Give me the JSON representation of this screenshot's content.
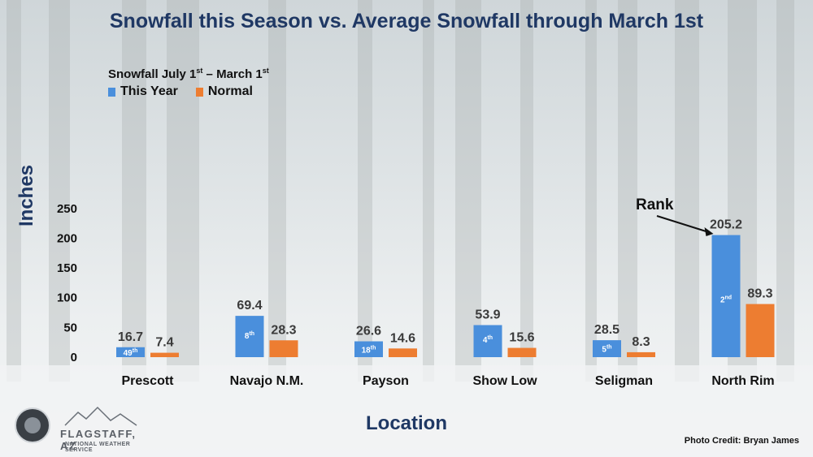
{
  "colors": {
    "this_year": "#4a8fdc",
    "normal": "#ed7d31",
    "title": "#1f3864"
  },
  "logo": {
    "name": "FLAGSTAFF, AZ",
    "sub": "NATIONAL WEATHER SERVICE",
    "icon": "nws-seal-icon"
  },
  "credit": "Photo Credit: Bryan James",
  "annotation": {
    "text": "Rank"
  },
  "chart_data": {
    "type": "bar",
    "title": "Snowfall this Season vs. Average Snowfall through March 1st",
    "xlabel": "Location",
    "ylabel": "Inches",
    "ylim": [
      0,
      250
    ],
    "yticks": [
      0,
      50,
      100,
      150,
      200,
      250
    ],
    "grid": false,
    "legend": {
      "title_parts": [
        "Snowfall July 1",
        "st",
        " – March 1",
        "st"
      ],
      "placement": "top-left"
    },
    "categories": [
      "Prescott",
      "Navajo N.M.",
      "Payson",
      "Show Low",
      "Seligman",
      "North Rim"
    ],
    "series": [
      {
        "name": "This Year",
        "values": [
          16.7,
          69.4,
          26.6,
          53.9,
          28.5,
          205.2
        ],
        "labels": [
          "16.7",
          "69.4",
          "26.6",
          "53.9",
          "28.5",
          "205.2"
        ]
      },
      {
        "name": "Normal",
        "values": [
          7.4,
          28.3,
          14.6,
          15.6,
          8.3,
          89.3
        ],
        "labels": [
          "7.4",
          "28.3",
          "14.6",
          "15.6",
          "8.3",
          "89.3"
        ]
      }
    ],
    "ranks": [
      {
        "num": "49",
        "sfx": "th"
      },
      {
        "num": "8",
        "sfx": "th"
      },
      {
        "num": "18",
        "sfx": "th"
      },
      {
        "num": "4",
        "sfx": "th"
      },
      {
        "num": "5",
        "sfx": "th"
      },
      {
        "num": "2",
        "sfx": "nd"
      }
    ]
  }
}
